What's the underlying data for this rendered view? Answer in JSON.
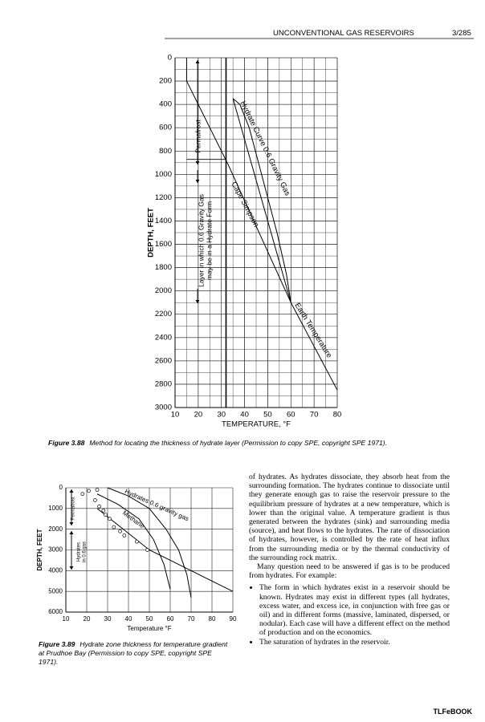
{
  "header": {
    "title": "UNCONVENTIONAL GAS RESERVOIRS",
    "page": "3/285"
  },
  "chart_data": [
    {
      "type": "line",
      "x_label": "TEMPERATURE, °F",
      "y_label": "DEPTH, FEET",
      "xlim": [
        10,
        80
      ],
      "ylim": [
        3000,
        0
      ],
      "xticks": [
        10,
        20,
        30,
        40,
        50,
        60,
        70,
        80
      ],
      "yticks": [
        0,
        200,
        400,
        600,
        800,
        1000,
        1200,
        1400,
        1600,
        1800,
        2000,
        2200,
        2400,
        2600,
        2800,
        3000
      ],
      "x_minor_step": 5,
      "y_minor_step": 100,
      "grid": true,
      "vlines": [
        32
      ],
      "series": [
        {
          "name": "Earth Temperature",
          "color": "#000000",
          "x": [
            15,
            15,
            33,
            60,
            80
          ],
          "values": [
            0,
            200,
            920,
            2100,
            2850
          ]
        },
        {
          "name": "Hydrate Curve 0.6 Gravity Gas",
          "color": "#000000",
          "x": [
            35,
            38,
            42,
            46,
            50,
            54,
            58,
            60
          ],
          "values": [
            350,
            400,
            600,
            900,
            1200,
            1500,
            1850,
            2100
          ]
        },
        {
          "name": "Cape Simpson",
          "color": "#000000",
          "x": [
            35,
            40,
            45,
            50,
            55,
            60
          ],
          "values": [
            350,
            700,
            1050,
            1400,
            1750,
            2100
          ]
        }
      ],
      "annotations": [
        [
          "Permafrost"
        ],
        [
          "Layer in which 0.6 Gravity Gas",
          "may be in a Hydrate Form"
        ]
      ]
    },
    {
      "type": "line",
      "x_label": "Temperature °F",
      "y_label": "DEPTH, FEET",
      "xlim": [
        10,
        90
      ],
      "ylim": [
        6000,
        0
      ],
      "xticks": [
        10,
        20,
        30,
        40,
        50,
        60,
        70,
        80,
        90
      ],
      "yticks": [
        0,
        1000,
        2000,
        3000,
        4000,
        5000,
        6000
      ],
      "grid": true,
      "series": [
        {
          "name": "Hydrates 0.6 gravity gas",
          "color": "#000000",
          "x": [
            30,
            40,
            50,
            58,
            64,
            68,
            70
          ],
          "values": [
            0,
            400,
            1000,
            2000,
            3000,
            4200,
            5300
          ]
        },
        {
          "name": "Methane",
          "color": "#000000",
          "x": [
            25,
            35,
            45,
            52,
            57,
            60
          ],
          "values": [
            300,
            800,
            1500,
            2500,
            3700,
            4900
          ]
        },
        {
          "color": "#000000",
          "x": [
            25,
            50,
            70,
            90
          ],
          "values": [
            1000,
            3000,
            4000,
            5000
          ]
        },
        {
          "mode": "markers",
          "color": "#000000",
          "x": [
            18,
            21,
            25,
            24,
            26,
            28,
            29,
            31,
            33,
            36,
            38,
            44,
            49
          ],
          "values": [
            300,
            150,
            100,
            600,
            900,
            1100,
            1300,
            1500,
            1900,
            2100,
            2300,
            2600,
            3000
          ]
        }
      ],
      "annotations": [
        [
          "Permafrost"
        ],
        [
          "Hydrates",
          "in 0.6 gas"
        ]
      ]
    }
  ],
  "captions": [
    {
      "number": "Figure 3.88",
      "text": "Method for locating the thickness of hydrate layer (Permission to copy SPE, copyright SPE 1971)."
    },
    {
      "number": "Figure 3.89",
      "text": "Hydrate zone thickness for temperature gradient at Prudhoe Bay (Permission to copy SPE, copyright SPE 1971)."
    }
  ],
  "body": {
    "paragraphs": [
      "of hydrates. As hydrates dissociate, they absorb heat from the surrounding formation. The hydrates continue to dissociate until they generate enough gas to raise the reservoir pressure to the equilibrium pressure of hydrates at a new temperature, which is lower than the original value. A temperature gradient is thus generated between the hydrates (sink) and surrounding media (source), and heat flows to the hydrates. The rate of dissociation of hydrates, however, is controlled by the rate of heat influx from the surrounding media or by the thermal conductivity of the surrounding rock matrix.",
      "Many question need to be answered if gas is to be produced from hydrates. For example:"
    ],
    "bullets": [
      "The form in which hydrates exist in a reservoir should be known. Hydrates may exist in different types (all hydrates, excess water, and excess ice, in conjunction with free gas or oil) and in different forms (massive, laminated, dispersed, or nodular). Each case will have a different effect on the method of production and on the economics.",
      "The saturation of hydrates in the reservoir."
    ]
  },
  "footer": "TLFeBOOK"
}
